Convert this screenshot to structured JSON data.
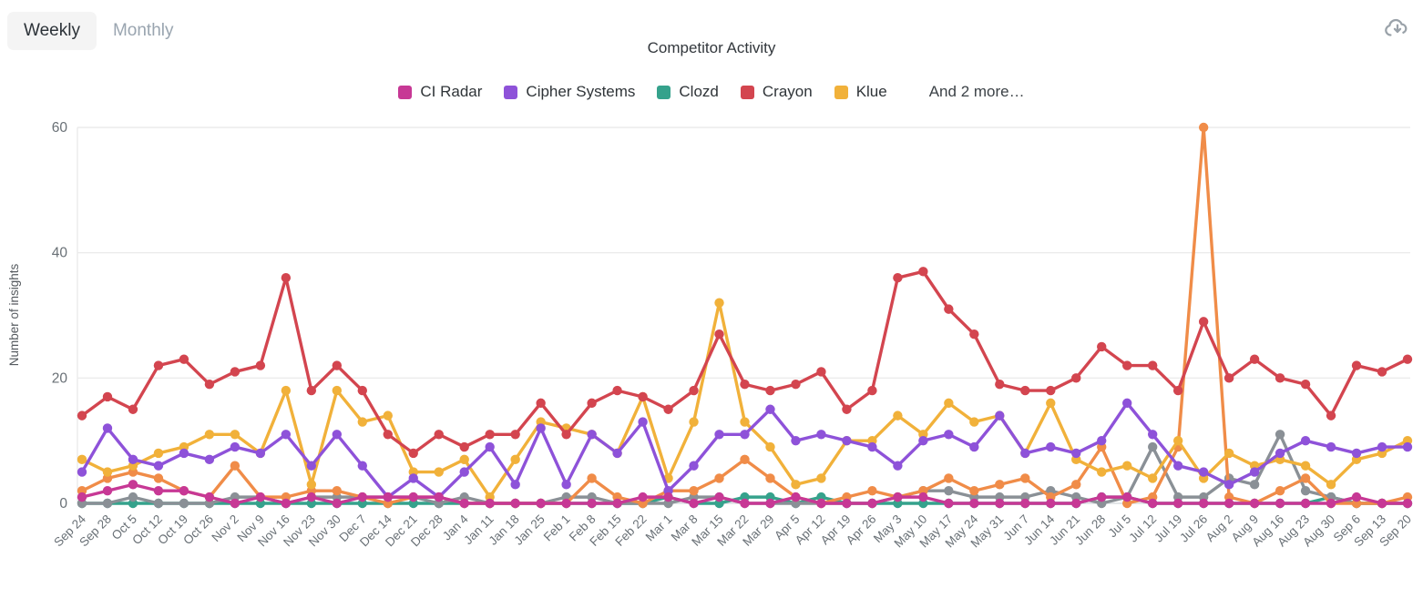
{
  "toolbar": {
    "weekly_label": "Weekly",
    "monthly_label": "Monthly"
  },
  "header": {
    "title": "Competitor Activity"
  },
  "icons": {
    "download": "cloud-download-icon"
  },
  "legend": {
    "items": [
      {
        "label": "CI Radar",
        "color": "#c73895"
      },
      {
        "label": "Cipher Systems",
        "color": "#8e52d9"
      },
      {
        "label": "Clozd",
        "color": "#35a28c"
      },
      {
        "label": "Crayon",
        "color": "#d3454f"
      },
      {
        "label": "Klue",
        "color": "#f1b13a"
      }
    ],
    "more_label": "And 2 more…"
  },
  "colors": {
    "grid": "#ebebeb",
    "axis": "#dadde0",
    "tick_text": "#697076",
    "axis_title": "#555a5f"
  },
  "chart_data": {
    "type": "line",
    "title": "Competitor Activity",
    "xlabel": "",
    "ylabel": "Number of insights",
    "ylim": [
      0,
      60
    ],
    "yticks": [
      0,
      20,
      40,
      60
    ],
    "grid": "horizontal",
    "legend_position": "top",
    "legend_note": "And 2 more…",
    "categories": [
      "Sep 24",
      "Sep 28",
      "Oct 5",
      "Oct 12",
      "Oct 19",
      "Oct 26",
      "Nov 2",
      "Nov 9",
      "Nov 16",
      "Nov 23",
      "Nov 30",
      "Dec 7",
      "Dec 14",
      "Dec 21",
      "Dec 28",
      "Jan 4",
      "Jan 11",
      "Jan 18",
      "Jan 25",
      "Feb 1",
      "Feb 8",
      "Feb 15",
      "Feb 22",
      "Mar 1",
      "Mar 8",
      "Mar 15",
      "Mar 22",
      "Mar 29",
      "Apr 5",
      "Apr 12",
      "Apr 19",
      "Apr 26",
      "May 3",
      "May 10",
      "May 17",
      "May 24",
      "May 31",
      "Jun 7",
      "Jun 14",
      "Jun 21",
      "Jun 28",
      "Jul 5",
      "Jul 12",
      "Jul 19",
      "Jul 26",
      "Aug 2",
      "Aug 9",
      "Aug 16",
      "Aug 23",
      "Aug 30",
      "Sep 6",
      "Sep 13",
      "Sep 20"
    ],
    "series": [
      {
        "name": "CI Radar",
        "color": "#c73895",
        "values": [
          1,
          2,
          3,
          2,
          2,
          1,
          0,
          1,
          0,
          1,
          0,
          1,
          1,
          1,
          1,
          0,
          0,
          0,
          0,
          0,
          0,
          0,
          1,
          1,
          0,
          1,
          0,
          0,
          1,
          0,
          0,
          0,
          1,
          1,
          0,
          0,
          0,
          0,
          0,
          0,
          1,
          1,
          0,
          0,
          0,
          0,
          0,
          0,
          0,
          0,
          1,
          0,
          0
        ]
      },
      {
        "name": "Cipher Systems",
        "color": "#8e52d9",
        "values": [
          5,
          12,
          7,
          6,
          8,
          7,
          9,
          8,
          11,
          6,
          11,
          6,
          1,
          4,
          1,
          5,
          9,
          3,
          12,
          3,
          11,
          8,
          13,
          2,
          6,
          11,
          11,
          15,
          10,
          11,
          10,
          9,
          6,
          10,
          11,
          9,
          14,
          8,
          9,
          8,
          10,
          16,
          11,
          6,
          5,
          3,
          5,
          8,
          10,
          9,
          8,
          9,
          9
        ]
      },
      {
        "name": "Clozd",
        "color": "#35a28c",
        "values": [
          0,
          0,
          0,
          0,
          0,
          0,
          0,
          0,
          0,
          0,
          0,
          0,
          0,
          0,
          0,
          0,
          0,
          0,
          0,
          0,
          0,
          0,
          0,
          1,
          0,
          0,
          1,
          1,
          0,
          1,
          0,
          0,
          0,
          0,
          0,
          0,
          0,
          0,
          0,
          0,
          1,
          1,
          0,
          0,
          0,
          0,
          0,
          0,
          0,
          1,
          0,
          0,
          0
        ]
      },
      {
        "name": "Crayon",
        "color": "#d3454f",
        "values": [
          14,
          17,
          15,
          22,
          23,
          19,
          21,
          22,
          36,
          18,
          22,
          18,
          11,
          8,
          11,
          9,
          11,
          11,
          16,
          11,
          16,
          18,
          17,
          15,
          18,
          27,
          19,
          18,
          19,
          21,
          15,
          18,
          36,
          37,
          31,
          27,
          19,
          18,
          18,
          20,
          25,
          22,
          22,
          18,
          29,
          20,
          23,
          20,
          19,
          14,
          22,
          21,
          23
        ]
      },
      {
        "name": "Klue",
        "color": "#f1b13a",
        "values": [
          7,
          5,
          6,
          8,
          9,
          11,
          11,
          8,
          18,
          3,
          18,
          13,
          14,
          5,
          5,
          7,
          1,
          7,
          13,
          12,
          11,
          8,
          17,
          4,
          13,
          32,
          13,
          9,
          3,
          4,
          10,
          10,
          14,
          11,
          16,
          13,
          14,
          8,
          16,
          7,
          5,
          6,
          4,
          10,
          4,
          8,
          6,
          7,
          6,
          3,
          7,
          8,
          10
        ]
      },
      {
        "name": "",
        "color": "#f08c48",
        "in_legend": false,
        "values": [
          2,
          4,
          5,
          4,
          2,
          1,
          6,
          1,
          1,
          2,
          2,
          1,
          0,
          1,
          1,
          0,
          0,
          0,
          0,
          0,
          4,
          1,
          0,
          2,
          2,
          4,
          7,
          4,
          1,
          0,
          1,
          2,
          1,
          2,
          4,
          2,
          3,
          4,
          1,
          3,
          9,
          0,
          1,
          9,
          60,
          1,
          0,
          2,
          4,
          0,
          0,
          0,
          1
        ]
      },
      {
        "name": "",
        "color": "#8a9096",
        "in_legend": false,
        "values": [
          0,
          0,
          1,
          0,
          0,
          0,
          1,
          1,
          0,
          1,
          1,
          1,
          1,
          1,
          0,
          1,
          0,
          0,
          0,
          1,
          1,
          0,
          0,
          0,
          1,
          1,
          0,
          0,
          0,
          0,
          0,
          0,
          1,
          2,
          2,
          1,
          1,
          1,
          2,
          1,
          0,
          1,
          9,
          1,
          1,
          4,
          3,
          11,
          2,
          1,
          0,
          0,
          0
        ]
      }
    ]
  }
}
